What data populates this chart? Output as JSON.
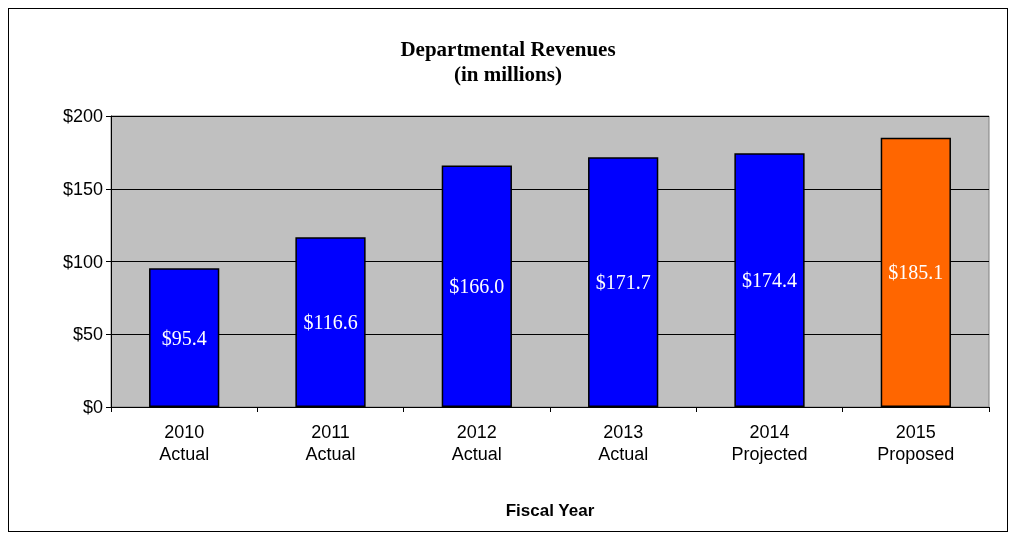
{
  "chart_data": {
    "type": "bar",
    "title": "Departmental Revenues",
    "subtitle": "(in millions)",
    "xlabel": "Fiscal Year",
    "categories": [
      "2010\nActual",
      "2011\nActual",
      "2012\nActual",
      "2013\nActual",
      "2014\nProjected",
      "2015\nProposed"
    ],
    "values": [
      95.4,
      116.6,
      166.0,
      171.7,
      174.4,
      185.1
    ],
    "colors": [
      "#0000ff",
      "#0000ff",
      "#0000ff",
      "#0000ff",
      "#0000ff",
      "#ff6600"
    ],
    "value_labels": [
      "$95.4",
      "$116.6",
      "$166.0",
      "$171.7",
      "$174.4",
      "$185.1"
    ],
    "ylim": [
      0,
      200
    ],
    "yticks": [
      {
        "value": 0,
        "label": "$0"
      },
      {
        "value": 50,
        "label": "$50"
      },
      {
        "value": 100,
        "label": "$100"
      },
      {
        "value": 150,
        "label": "$150"
      },
      {
        "value": 200,
        "label": "$200"
      }
    ],
    "grid": "y"
  }
}
